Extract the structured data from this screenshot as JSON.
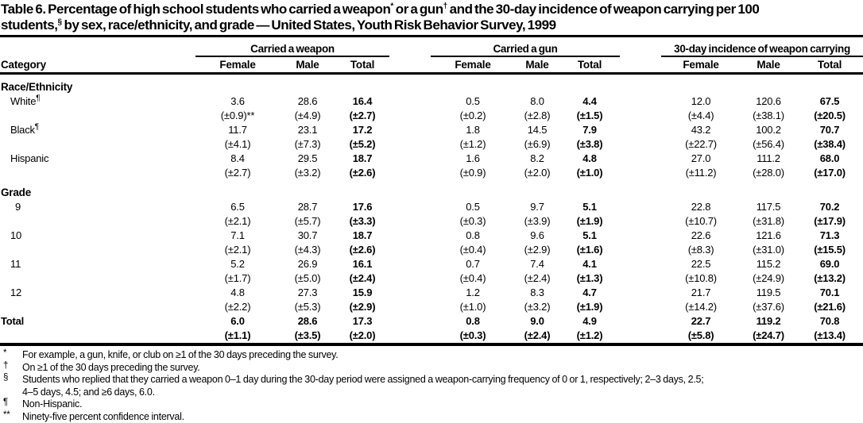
{
  "colors": {
    "text": "#000000",
    "background": "#ffffff",
    "rule": "#000000"
  },
  "title": {
    "line1_a": "Table 6. Percentage of high school students who carried a weapon",
    "sup_a": "*",
    "line1_b": " or a gun",
    "sup_b": "†",
    "line1_c": " and the 30-day incidence of weapon carrying per 100",
    "line2_a": "students,",
    "sup_c": "§",
    "line2_b": " by sex, race/ethnicity, and grade — United States, Youth Risk Behavior Survey, 1999"
  },
  "header": {
    "category": "Category",
    "groups": [
      {
        "label": "Carried a weapon",
        "columns": [
          "Female",
          "Male",
          "Total"
        ]
      },
      {
        "label": "Carried a gun",
        "columns": [
          "Female",
          "Male",
          "Total"
        ]
      },
      {
        "label": "30-day incidence of weapon carrying",
        "columns": [
          "Female",
          "Male",
          "Total"
        ]
      }
    ]
  },
  "rows": [
    {
      "type": "section",
      "label": "Race/Ethnicity"
    },
    {
      "type": "data",
      "label": "White",
      "sup": "¶",
      "indent": "race",
      "weapon": {
        "values": [
          "3.6",
          "28.6",
          "16.4"
        ],
        "ci": [
          "(±0.9)**",
          "(±4.9)",
          "(±2.7)"
        ]
      },
      "gun": {
        "values": [
          "0.5",
          "8.0",
          "4.4"
        ],
        "ci": [
          "(±0.2)",
          "(±2.8)",
          "(±1.5)"
        ]
      },
      "incidence": {
        "values": [
          "12.0",
          "120.6",
          "67.5"
        ],
        "ci": [
          "(±4.4)",
          "(±38.1)",
          "(±20.5)"
        ]
      }
    },
    {
      "type": "data",
      "label": "Black",
      "sup": "¶",
      "indent": "race",
      "weapon": {
        "values": [
          "11.7",
          "23.1",
          "17.2"
        ],
        "ci": [
          "(±4.1)",
          "(±7.3)",
          "(±5.2)"
        ]
      },
      "gun": {
        "values": [
          "1.8",
          "14.5",
          "7.9"
        ],
        "ci": [
          "(±1.2)",
          "(±6.9)",
          "(±3.8)"
        ]
      },
      "incidence": {
        "values": [
          "43.2",
          "100.2",
          "70.7"
        ],
        "ci": [
          "(±22.7)",
          "(±56.4)",
          "(±38.4)"
        ]
      }
    },
    {
      "type": "data",
      "label": "Hispanic",
      "indent": "race",
      "weapon": {
        "values": [
          "8.4",
          "29.5",
          "18.7"
        ],
        "ci": [
          "(±2.7)",
          "(±3.2)",
          "(±2.6)"
        ]
      },
      "gun": {
        "values": [
          "1.6",
          "8.2",
          "4.8"
        ],
        "ci": [
          "(±0.9)",
          "(±2.0)",
          "(±1.0)"
        ]
      },
      "incidence": {
        "values": [
          "27.0",
          "111.2",
          "68.0"
        ],
        "ci": [
          "(±11.2)",
          "(±28.0)",
          "(±17.0)"
        ]
      }
    },
    {
      "type": "section",
      "label": "Grade"
    },
    {
      "type": "data",
      "label": "9",
      "indent": "grade",
      "weapon": {
        "values": [
          "6.5",
          "28.7",
          "17.6"
        ],
        "ci": [
          "(±2.1)",
          "(±5.7)",
          "(±3.3)"
        ]
      },
      "gun": {
        "values": [
          "0.5",
          "9.7",
          "5.1"
        ],
        "ci": [
          "(±0.3)",
          "(±3.9)",
          "(±1.9)"
        ]
      },
      "incidence": {
        "values": [
          "22.8",
          "117.5",
          "70.2"
        ],
        "ci": [
          "(±10.7)",
          "(±31.8)",
          "(±17.9)"
        ]
      }
    },
    {
      "type": "data",
      "label": "10",
      "indent": "grade",
      "weapon": {
        "values": [
          "7.1",
          "30.7",
          "18.7"
        ],
        "ci": [
          "(±2.1)",
          "(±4.3)",
          "(±2.6)"
        ]
      },
      "gun": {
        "values": [
          "0.8",
          "9.6",
          "5.1"
        ],
        "ci": [
          "(±0.4)",
          "(±2.9)",
          "(±1.6)"
        ]
      },
      "incidence": {
        "values": [
          "22.6",
          "121.6",
          "71.3"
        ],
        "ci": [
          "(±8.3)",
          "(±31.0)",
          "(±15.5)"
        ]
      }
    },
    {
      "type": "data",
      "label": "11",
      "indent": "grade",
      "weapon": {
        "values": [
          "5.2",
          "26.9",
          "16.1"
        ],
        "ci": [
          "(±1.7)",
          "(±5.0)",
          "(±2.4)"
        ]
      },
      "gun": {
        "values": [
          "0.7",
          "7.4",
          "4.1"
        ],
        "ci": [
          "(±0.4)",
          "(±2.4)",
          "(±1.3)"
        ]
      },
      "incidence": {
        "values": [
          "22.5",
          "115.2",
          "69.0"
        ],
        "ci": [
          "(±10.8)",
          "(±24.9)",
          "(±13.2)"
        ]
      }
    },
    {
      "type": "data",
      "label": "12",
      "indent": "grade",
      "weapon": {
        "values": [
          "4.8",
          "27.3",
          "15.9"
        ],
        "ci": [
          "(±2.2)",
          "(±5.3)",
          "(±2.9)"
        ]
      },
      "gun": {
        "values": [
          "1.2",
          "8.3",
          "4.7"
        ],
        "ci": [
          "(±1.0)",
          "(±3.2)",
          "(±1.9)"
        ]
      },
      "incidence": {
        "values": [
          "21.7",
          "119.5",
          "70.1"
        ],
        "ci": [
          "(±14.2)",
          "(±37.6)",
          "(±21.6)"
        ]
      }
    },
    {
      "type": "total",
      "label": "Total",
      "indent": "total",
      "weapon": {
        "values": [
          "6.0",
          "28.6",
          "17.3"
        ],
        "ci": [
          "(±1.1)",
          "(±3.5)",
          "(±2.0)"
        ]
      },
      "gun": {
        "values": [
          "0.8",
          "9.0",
          "4.9"
        ],
        "ci": [
          "(±0.3)",
          "(±2.4)",
          "(±1.2)"
        ]
      },
      "incidence": {
        "values": [
          "22.7",
          "119.2",
          "70.8"
        ],
        "ci": [
          "(±5.8)",
          "(±24.7)",
          "(±13.4)"
        ]
      }
    }
  ],
  "footnotes": [
    {
      "marker": "*",
      "text": "For example, a gun, knife, or club on ≥1 of the 30 days preceding the survey."
    },
    {
      "marker": "†",
      "text": "On ≥1 of the 30 days preceding the survey."
    },
    {
      "marker": "§",
      "text": "Students who replied that they carried a weapon 0–1 day during the 30-day period were assigned a weapon-carrying frequency of 0 or 1, respectively; 2–3 days, 2.5;\n4–5 days, 4.5; and ≥6 days, 6.0."
    },
    {
      "marker": "¶",
      "text": "Non-Hispanic."
    },
    {
      "marker": "**",
      "text": "Ninety-five percent confidence interval."
    }
  ]
}
